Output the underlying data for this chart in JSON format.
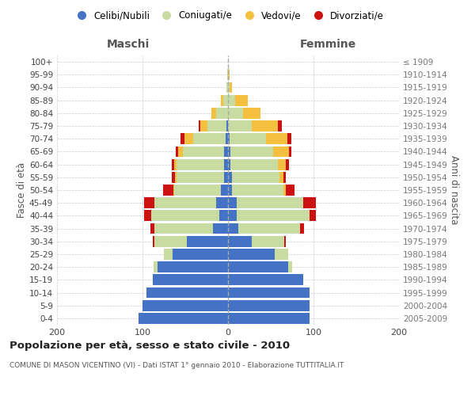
{
  "age_groups": [
    "0-4",
    "5-9",
    "10-14",
    "15-19",
    "20-24",
    "25-29",
    "30-34",
    "35-39",
    "40-44",
    "45-49",
    "50-54",
    "55-59",
    "60-64",
    "65-69",
    "70-74",
    "75-79",
    "80-84",
    "85-89",
    "90-94",
    "95-99",
    "100+"
  ],
  "birth_years": [
    "2005-2009",
    "2000-2004",
    "1995-1999",
    "1990-1994",
    "1985-1989",
    "1980-1984",
    "1975-1979",
    "1970-1974",
    "1965-1969",
    "1960-1964",
    "1955-1959",
    "1950-1954",
    "1945-1949",
    "1940-1944",
    "1935-1939",
    "1930-1934",
    "1925-1929",
    "1920-1924",
    "1915-1919",
    "1910-1914",
    "≤ 1909"
  ],
  "males_celibi": [
    105,
    100,
    95,
    88,
    82,
    65,
    48,
    18,
    10,
    14,
    8,
    5,
    5,
    5,
    3,
    2,
    0,
    0,
    0,
    0,
    0
  ],
  "males_coniugati": [
    0,
    0,
    0,
    0,
    5,
    10,
    38,
    68,
    80,
    72,
    55,
    55,
    55,
    48,
    38,
    22,
    14,
    6,
    2,
    1,
    0
  ],
  "males_vedovi": [
    0,
    0,
    0,
    0,
    0,
    0,
    0,
    0,
    0,
    0,
    1,
    2,
    3,
    5,
    10,
    8,
    5,
    2,
    0,
    0,
    0
  ],
  "males_divorziati": [
    0,
    0,
    0,
    0,
    0,
    0,
    2,
    5,
    8,
    12,
    12,
    4,
    3,
    3,
    5,
    2,
    0,
    0,
    0,
    0,
    0
  ],
  "females_nubili": [
    95,
    95,
    95,
    88,
    70,
    55,
    28,
    12,
    10,
    10,
    5,
    5,
    3,
    3,
    2,
    0,
    0,
    0,
    0,
    0,
    0
  ],
  "females_coniugate": [
    0,
    0,
    0,
    0,
    5,
    15,
    38,
    72,
    85,
    78,
    60,
    55,
    55,
    50,
    42,
    28,
    18,
    8,
    2,
    1,
    0
  ],
  "females_vedove": [
    0,
    0,
    0,
    0,
    0,
    0,
    0,
    0,
    0,
    0,
    3,
    5,
    10,
    18,
    25,
    30,
    20,
    15,
    3,
    1,
    0
  ],
  "females_divorziate": [
    0,
    0,
    0,
    0,
    0,
    0,
    2,
    5,
    8,
    15,
    10,
    3,
    3,
    3,
    5,
    5,
    0,
    0,
    0,
    0,
    0
  ],
  "colors": {
    "celibi_nubili": "#4472c4",
    "coniugati_e": "#c8dba0",
    "vedovi_e": "#f5c040",
    "divorziati_e": "#cc1111"
  },
  "xlim": [
    -200,
    200
  ],
  "xticks": [
    -200,
    -100,
    0,
    100,
    200
  ],
  "xticklabels": [
    "200",
    "100",
    "0",
    "100",
    "200"
  ],
  "title_main": "Popolazione per età, sesso e stato civile - 2010",
  "title_sub": "COMUNE DI MASON VICENTINO (VI) - Dati ISTAT 1° gennaio 2010 - Elaborazione TUTTITALIA.IT",
  "ylabel_left": "Fasce di età",
  "ylabel_right": "Anni di nascita",
  "header_maschi": "Maschi",
  "header_femmine": "Femmine",
  "legend_labels": [
    "Celibi/Nubili",
    "Coniugati/e",
    "Vedovi/e",
    "Divorziati/e"
  ],
  "bar_height": 0.85
}
